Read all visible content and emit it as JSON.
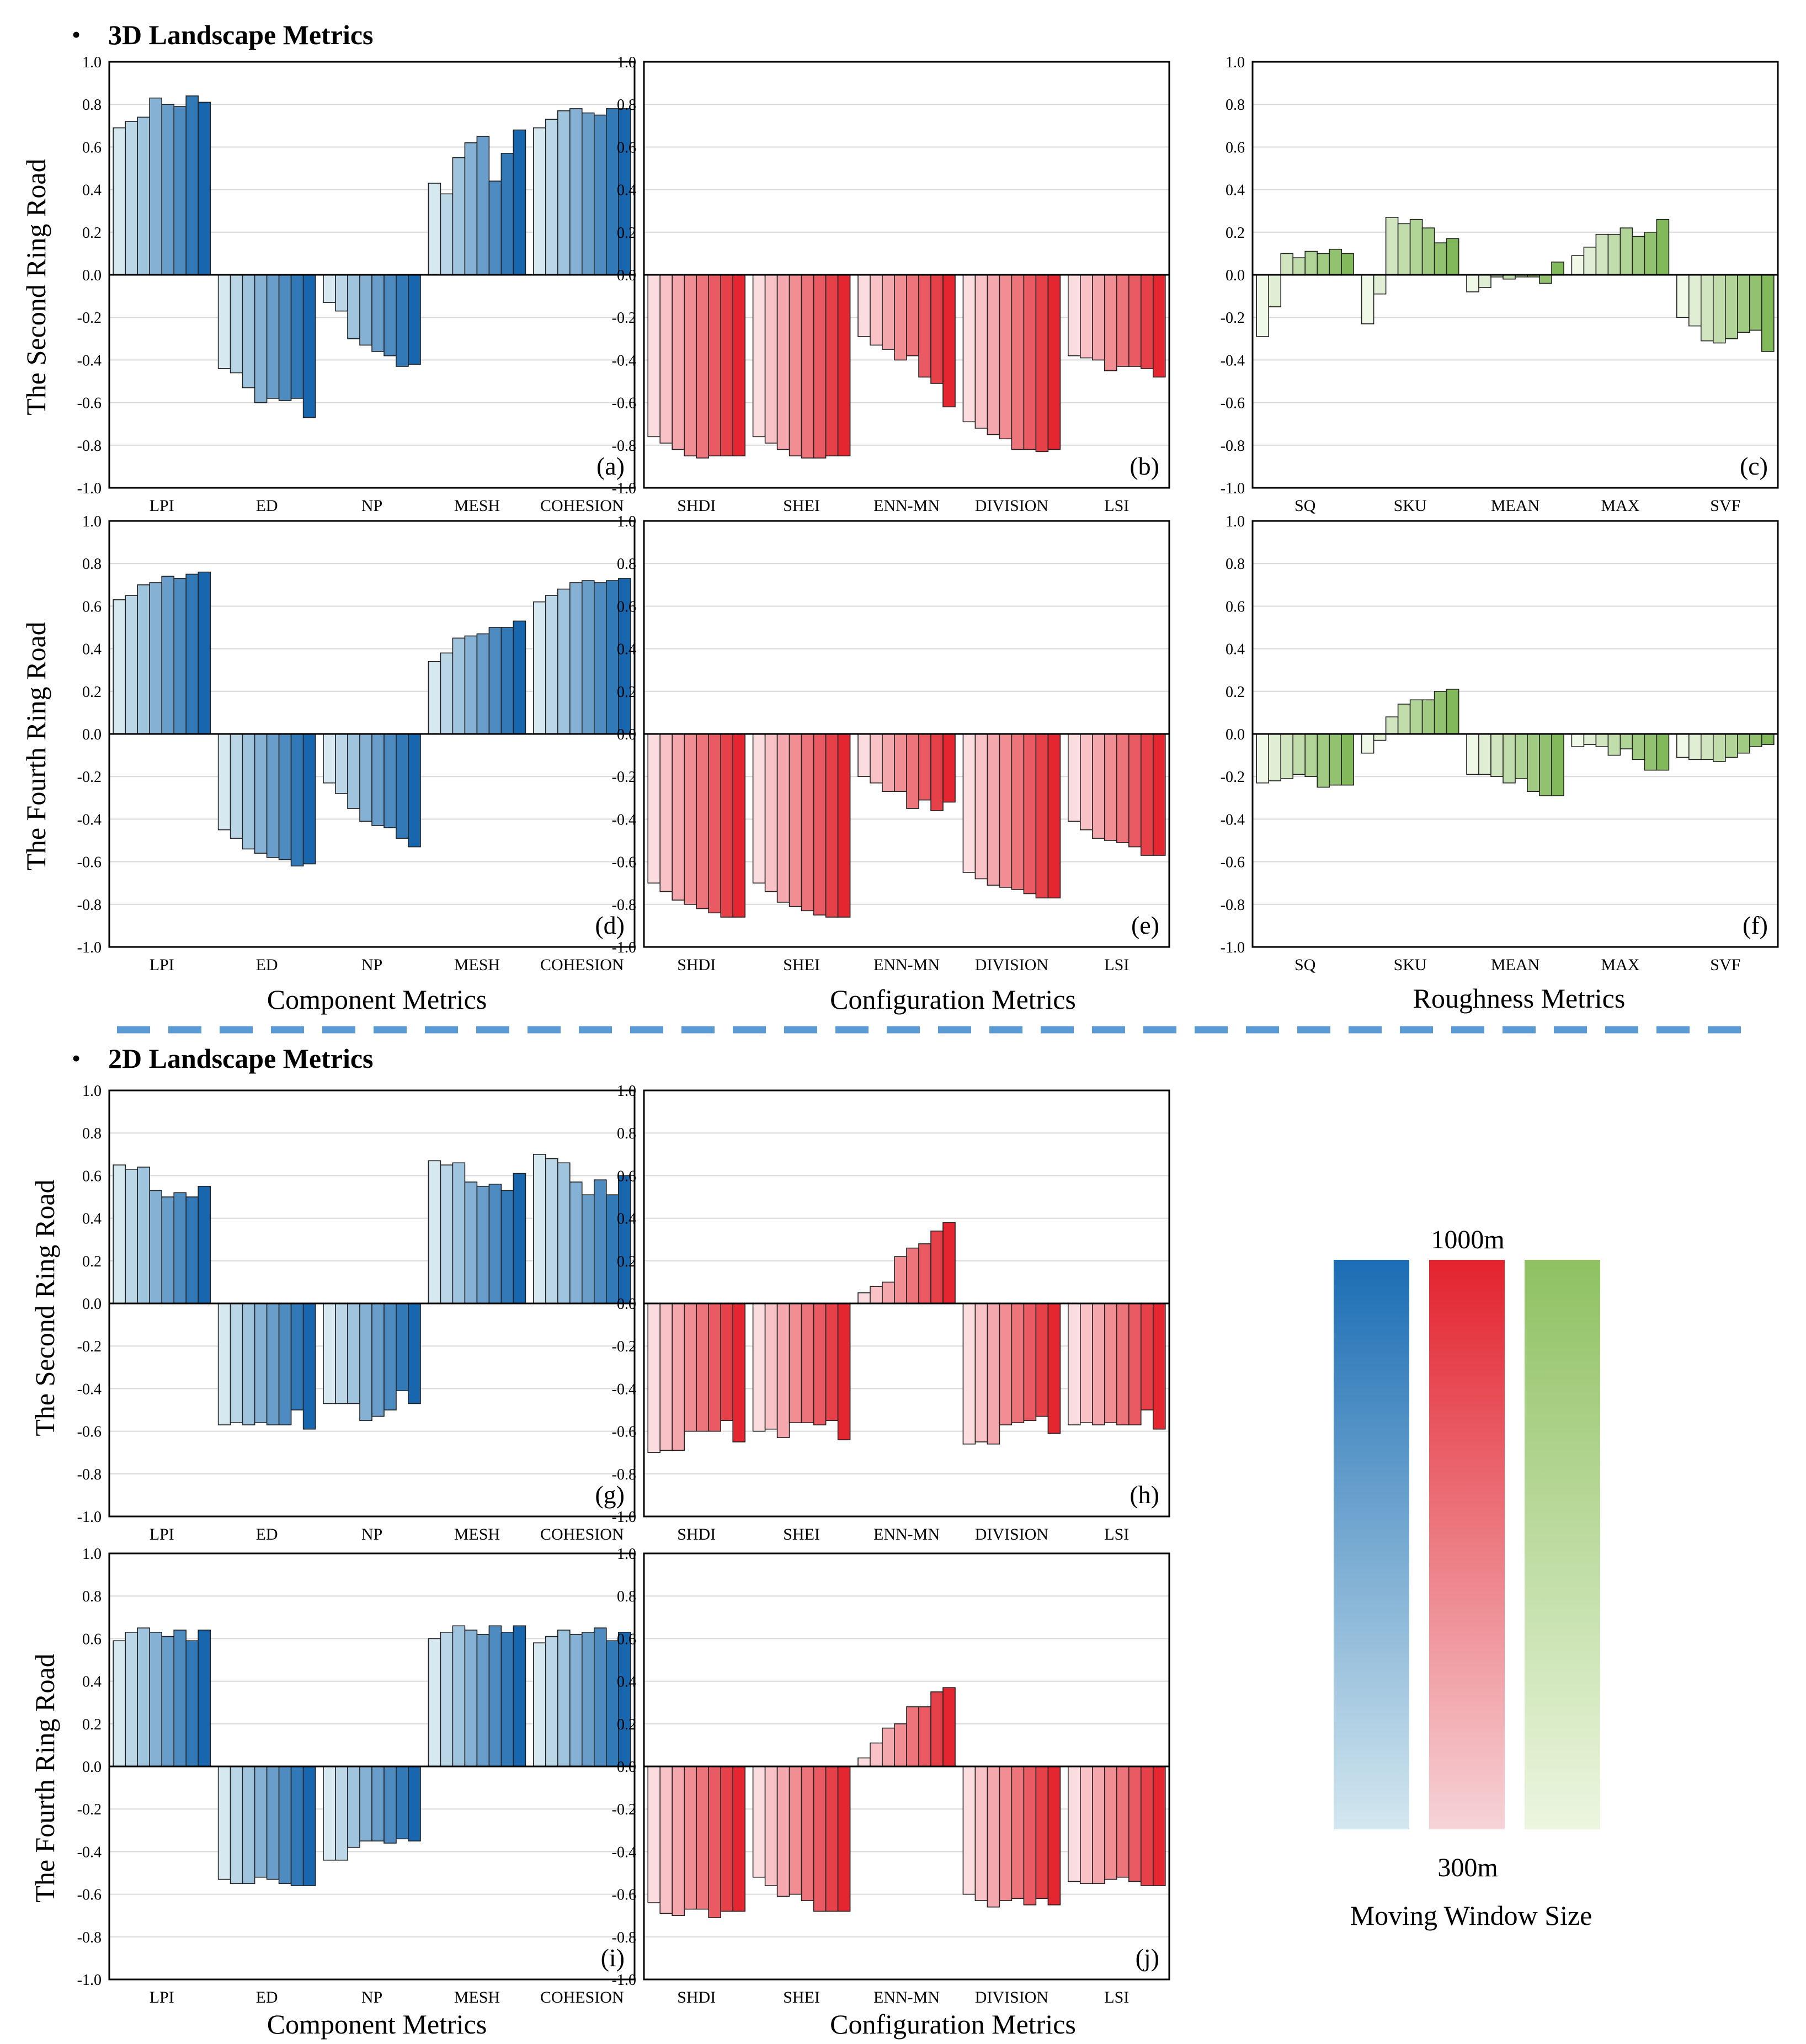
{
  "sections": [
    {
      "bullet": "•",
      "title": "3D Landscape Metrics"
    },
    {
      "bullet": "•",
      "title": "2D Landscape Metrics"
    }
  ],
  "row_labels": {
    "second": "The Second Ring Road",
    "fourth": "The Fourth Ring Road"
  },
  "column_labels": {
    "component": "Component Metrics",
    "configuration": "Configuration Metrics",
    "roughness": "Roughness Metrics"
  },
  "legend": {
    "top_label": "1000m",
    "bottom_label": "300m",
    "caption": "Moving Window Size",
    "gradients": [
      {
        "name": "blue",
        "from": "#d3e7ef",
        "to": "#1b6db4"
      },
      {
        "name": "red",
        "from": "#f6d3d7",
        "to": "#e3232e"
      },
      {
        "name": "green",
        "from": "#ecf6e0",
        "to": "#8fc162"
      }
    ]
  },
  "colors": {
    "blue": {
      "light": "#d6e9f1",
      "dark": "#1766ae"
    },
    "red": {
      "light": "#fbdcdf",
      "dark": "#e32630"
    },
    "green": {
      "light": "#f0f8e8",
      "dark": "#82b95b"
    },
    "dash": "#5b9bd5",
    "grid": "#d9d9d9"
  },
  "chart_data": [
    {
      "type": "bar",
      "panel": "(a)",
      "color": "blue",
      "ylim": [
        -1,
        1
      ],
      "yticks": [
        "1.0",
        "0.8",
        "0.6",
        "0.4",
        "0.2",
        "0.0",
        "-0.2",
        "-0.4",
        "-0.6",
        "-0.8",
        "-1.0"
      ],
      "categories": [
        "LPI",
        "ED",
        "NP",
        "MESH",
        "COHESION"
      ],
      "values": [
        [
          0.69,
          0.72,
          0.74,
          0.83,
          0.8,
          0.79,
          0.84,
          0.81
        ],
        [
          -0.44,
          -0.46,
          -0.53,
          -0.6,
          -0.58,
          -0.59,
          -0.58,
          -0.67
        ],
        [
          -0.13,
          -0.17,
          -0.3,
          -0.33,
          -0.36,
          -0.38,
          -0.43,
          -0.42
        ],
        [
          0.43,
          0.38,
          0.55,
          0.62,
          0.65,
          0.44,
          0.57,
          0.68
        ],
        [
          0.69,
          0.73,
          0.77,
          0.78,
          0.76,
          0.75,
          0.78,
          0.78
        ]
      ]
    },
    {
      "type": "bar",
      "panel": "(b)",
      "color": "red",
      "ylim": [
        -1,
        1
      ],
      "yticks": [
        "1.0",
        "0.8",
        "0.6",
        "0.4",
        "0.2",
        "0.0",
        "-0.2",
        "-0.4",
        "-0.6",
        "-0.8",
        "-1.0"
      ],
      "categories": [
        "SHDI",
        "SHEI",
        "ENN-MN",
        "DIVISION",
        "LSI"
      ],
      "values": [
        [
          -0.76,
          -0.79,
          -0.82,
          -0.85,
          -0.86,
          -0.85,
          -0.85,
          -0.85
        ],
        [
          -0.76,
          -0.79,
          -0.82,
          -0.85,
          -0.86,
          -0.86,
          -0.85,
          -0.85
        ],
        [
          -0.29,
          -0.33,
          -0.35,
          -0.4,
          -0.38,
          -0.48,
          -0.51,
          -0.62
        ],
        [
          -0.69,
          -0.72,
          -0.75,
          -0.77,
          -0.82,
          -0.82,
          -0.83,
          -0.82
        ],
        [
          -0.38,
          -0.39,
          -0.4,
          -0.45,
          -0.43,
          -0.43,
          -0.44,
          -0.48
        ]
      ]
    },
    {
      "type": "bar",
      "panel": "(c)",
      "color": "green",
      "ylim": [
        -1,
        1
      ],
      "yticks": [
        "1.0",
        "0.8",
        "0.6",
        "0.4",
        "0.2",
        "0.0",
        "-0.2",
        "-0.4",
        "-0.6",
        "-0.8",
        "-1.0"
      ],
      "categories": [
        "SQ",
        "SKU",
        "MEAN",
        "MAX",
        "SVF"
      ],
      "values": [
        [
          -0.29,
          -0.15,
          0.1,
          0.08,
          0.11,
          0.1,
          0.12,
          0.1
        ],
        [
          -0.23,
          -0.09,
          0.27,
          0.24,
          0.26,
          0.22,
          0.15,
          0.17
        ],
        [
          -0.08,
          -0.06,
          -0.01,
          -0.02,
          -0.01,
          -0.01,
          -0.04,
          0.06
        ],
        [
          0.09,
          0.13,
          0.19,
          0.19,
          0.22,
          0.18,
          0.2,
          0.26
        ],
        [
          -0.2,
          -0.24,
          -0.31,
          -0.32,
          -0.3,
          -0.27,
          -0.26,
          -0.36
        ]
      ]
    },
    {
      "type": "bar",
      "panel": "(d)",
      "color": "blue",
      "ylim": [
        -1,
        1
      ],
      "yticks": [
        "1.0",
        "0.8",
        "0.6",
        "0.4",
        "0.2",
        "0.0",
        "-0.2",
        "-0.4",
        "-0.6",
        "-0.8",
        "-1.0"
      ],
      "categories": [
        "LPI",
        "ED",
        "NP",
        "MESH",
        "COHESION"
      ],
      "values": [
        [
          0.63,
          0.65,
          0.7,
          0.71,
          0.74,
          0.73,
          0.75,
          0.76
        ],
        [
          -0.45,
          -0.49,
          -0.54,
          -0.56,
          -0.58,
          -0.59,
          -0.62,
          -0.61
        ],
        [
          -0.23,
          -0.28,
          -0.35,
          -0.41,
          -0.43,
          -0.44,
          -0.49,
          -0.53
        ],
        [
          0.34,
          0.38,
          0.45,
          0.46,
          0.47,
          0.5,
          0.5,
          0.53
        ],
        [
          0.62,
          0.65,
          0.68,
          0.71,
          0.72,
          0.71,
          0.72,
          0.73
        ]
      ]
    },
    {
      "type": "bar",
      "panel": "(e)",
      "color": "red",
      "ylim": [
        -1,
        1
      ],
      "yticks": [
        "1.0",
        "0.8",
        "0.6",
        "0.4",
        "0.2",
        "0.0",
        "-0.2",
        "-0.4",
        "-0.6",
        "-0.8",
        "-1.0"
      ],
      "categories": [
        "SHDI",
        "SHEI",
        "ENN-MN",
        "DIVISION",
        "LSI"
      ],
      "values": [
        [
          -0.7,
          -0.74,
          -0.78,
          -0.8,
          -0.82,
          -0.84,
          -0.86,
          -0.86
        ],
        [
          -0.7,
          -0.74,
          -0.79,
          -0.81,
          -0.83,
          -0.85,
          -0.86,
          -0.86
        ],
        [
          -0.2,
          -0.23,
          -0.27,
          -0.27,
          -0.35,
          -0.31,
          -0.36,
          -0.32
        ],
        [
          -0.65,
          -0.68,
          -0.71,
          -0.72,
          -0.73,
          -0.75,
          -0.77,
          -0.77
        ],
        [
          -0.41,
          -0.45,
          -0.49,
          -0.5,
          -0.51,
          -0.53,
          -0.57,
          -0.57
        ]
      ]
    },
    {
      "type": "bar",
      "panel": "(f)",
      "color": "green",
      "ylim": [
        -1,
        1
      ],
      "yticks": [
        "1.0",
        "0.8",
        "0.6",
        "0.4",
        "0.2",
        "0.0",
        "-0.2",
        "-0.4",
        "-0.6",
        "-0.8",
        "-1.0"
      ],
      "categories": [
        "SQ",
        "SKU",
        "MEAN",
        "MAX",
        "SVF"
      ],
      "values": [
        [
          -0.23,
          -0.22,
          -0.21,
          -0.19,
          -0.2,
          -0.25,
          -0.24,
          -0.24
        ],
        [
          -0.09,
          -0.03,
          0.08,
          0.14,
          0.16,
          0.16,
          0.2,
          0.21
        ],
        [
          -0.19,
          -0.19,
          -0.2,
          -0.23,
          -0.21,
          -0.27,
          -0.29,
          -0.29
        ],
        [
          -0.06,
          -0.05,
          -0.06,
          -0.1,
          -0.07,
          -0.12,
          -0.17,
          -0.17
        ],
        [
          -0.11,
          -0.12,
          -0.12,
          -0.13,
          -0.11,
          -0.09,
          -0.06,
          -0.05
        ]
      ]
    },
    {
      "type": "bar",
      "panel": "(g)",
      "color": "blue",
      "ylim": [
        -1,
        1
      ],
      "yticks": [
        "1.0",
        "0.8",
        "0.6",
        "0.4",
        "0.2",
        "0.0",
        "-0.2",
        "-0.4",
        "-0.6",
        "-0.8",
        "-1.0"
      ],
      "categories": [
        "LPI",
        "ED",
        "NP",
        "MESH",
        "COHESION"
      ],
      "values": [
        [
          0.65,
          0.63,
          0.64,
          0.53,
          0.5,
          0.52,
          0.5,
          0.55
        ],
        [
          -0.57,
          -0.56,
          -0.57,
          -0.56,
          -0.57,
          -0.57,
          -0.5,
          -0.59
        ],
        [
          -0.47,
          -0.47,
          -0.47,
          -0.55,
          -0.53,
          -0.5,
          -0.41,
          -0.47
        ],
        [
          0.67,
          0.65,
          0.66,
          0.57,
          0.55,
          0.56,
          0.53,
          0.61
        ],
        [
          0.7,
          0.68,
          0.66,
          0.57,
          0.51,
          0.58,
          0.51,
          0.6
        ]
      ]
    },
    {
      "type": "bar",
      "panel": "(h)",
      "color": "red",
      "ylim": [
        -1,
        1
      ],
      "yticks": [
        "1.0",
        "0.8",
        "0.6",
        "0.4",
        "0.2",
        "0.0",
        "-0.2",
        "-0.4",
        "-0.6",
        "-0.8",
        "-1.0"
      ],
      "categories": [
        "SHDI",
        "SHEI",
        "ENN-MN",
        "DIVISION",
        "LSI"
      ],
      "values": [
        [
          -0.7,
          -0.69,
          -0.69,
          -0.6,
          -0.6,
          -0.6,
          -0.55,
          -0.65
        ],
        [
          -0.6,
          -0.59,
          -0.63,
          -0.56,
          -0.56,
          -0.57,
          -0.55,
          -0.64
        ],
        [
          0.05,
          0.08,
          0.1,
          0.22,
          0.26,
          0.28,
          0.34,
          0.38
        ],
        [
          -0.66,
          -0.65,
          -0.66,
          -0.57,
          -0.56,
          -0.55,
          -0.53,
          -0.61
        ],
        [
          -0.57,
          -0.56,
          -0.57,
          -0.56,
          -0.57,
          -0.57,
          -0.5,
          -0.59
        ]
      ]
    },
    {
      "type": "bar",
      "panel": "(i)",
      "color": "blue",
      "ylim": [
        -1,
        1
      ],
      "yticks": [
        "1.0",
        "0.8",
        "0.6",
        "0.4",
        "0.2",
        "0.0",
        "-0.2",
        "-0.4",
        "-0.6",
        "-0.8",
        "-1.0"
      ],
      "categories": [
        "LPI",
        "ED",
        "NP",
        "MESH",
        "COHESION"
      ],
      "values": [
        [
          0.59,
          0.63,
          0.65,
          0.63,
          0.61,
          0.64,
          0.59,
          0.64
        ],
        [
          -0.53,
          -0.55,
          -0.55,
          -0.52,
          -0.53,
          -0.55,
          -0.56,
          -0.56
        ],
        [
          -0.44,
          -0.44,
          -0.38,
          -0.35,
          -0.35,
          -0.36,
          -0.34,
          -0.35
        ],
        [
          0.6,
          0.63,
          0.66,
          0.64,
          0.62,
          0.66,
          0.63,
          0.66
        ],
        [
          0.58,
          0.61,
          0.64,
          0.62,
          0.63,
          0.65,
          0.59,
          0.63
        ]
      ]
    },
    {
      "type": "bar",
      "panel": "(j)",
      "color": "red",
      "ylim": [
        -1,
        1
      ],
      "yticks": [
        "1.0",
        "0.8",
        "0.6",
        "0.4",
        "0.2",
        "0.0",
        "-0.2",
        "-0.4",
        "-0.6",
        "-0.8",
        "-1.0"
      ],
      "categories": [
        "SHDI",
        "SHEI",
        "ENN-MN",
        "DIVISION",
        "LSI"
      ],
      "values": [
        [
          -0.64,
          -0.69,
          -0.7,
          -0.67,
          -0.67,
          -0.71,
          -0.68,
          -0.68
        ],
        [
          -0.52,
          -0.56,
          -0.61,
          -0.6,
          -0.63,
          -0.68,
          -0.68,
          -0.68
        ],
        [
          0.04,
          0.11,
          0.18,
          0.2,
          0.28,
          0.28,
          0.35,
          0.37
        ],
        [
          -0.6,
          -0.63,
          -0.66,
          -0.63,
          -0.62,
          -0.65,
          -0.62,
          -0.65
        ],
        [
          -0.54,
          -0.55,
          -0.55,
          -0.53,
          -0.52,
          -0.54,
          -0.56,
          -0.56
        ]
      ]
    }
  ]
}
